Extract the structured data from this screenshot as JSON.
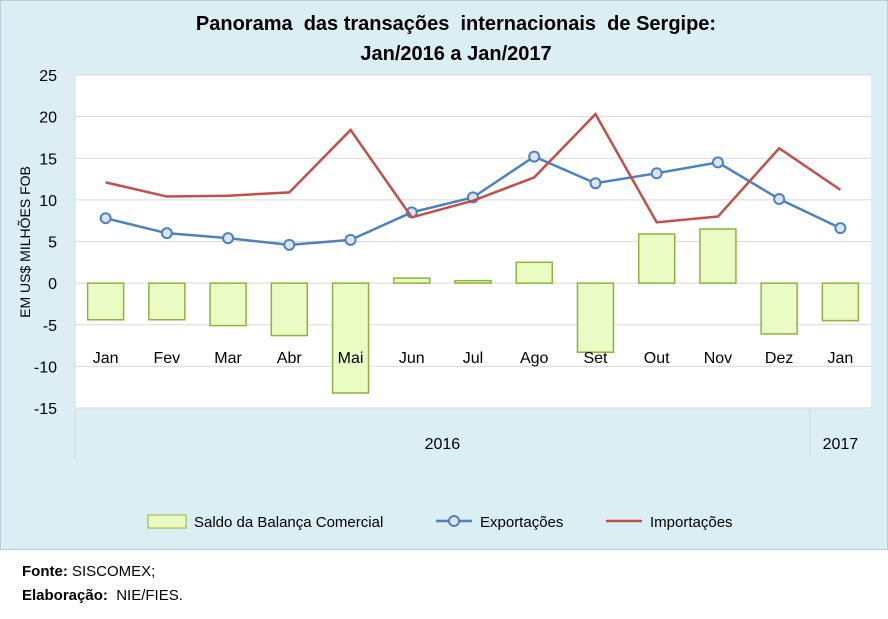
{
  "chart_data": {
    "type": "bar+line",
    "title_line1": "Panorama  das transações  internacionais  de Sergipe:",
    "title_line2": "Jan/2016 a Jan/2017",
    "ylabel": "EM US$ MILHÕES FOB",
    "ylim": [
      -15,
      25
    ],
    "yticks": [
      25,
      20,
      15,
      10,
      5,
      0,
      -5,
      -10,
      -15
    ],
    "grid": true,
    "categories": [
      "Jan",
      "Fev",
      "Mar",
      "Abr",
      "Mai",
      "Jun",
      "Jul",
      "Ago",
      "Set",
      "Out",
      "Nov",
      "Dez",
      "Jan"
    ],
    "year_groups": [
      {
        "label": "2016",
        "count": 12
      },
      {
        "label": "2017",
        "count": 1
      }
    ],
    "legend_position": "bottom",
    "series": [
      {
        "name": "Saldo da Balança Comercial",
        "type": "bar",
        "color": "#eafcc4",
        "stroke": "#8db33e",
        "values": [
          -4.4,
          -4.4,
          -5.1,
          -6.3,
          -13.2,
          0.6,
          0.3,
          2.5,
          -8.3,
          5.9,
          6.5,
          -6.1,
          -4.5
        ]
      },
      {
        "name": "Exportações",
        "type": "line",
        "color": "#4f81bd",
        "values": [
          7.8,
          6.0,
          5.4,
          4.6,
          5.2,
          8.5,
          10.3,
          15.2,
          12.0,
          13.2,
          14.5,
          10.1,
          6.6
        ]
      },
      {
        "name": "Importações",
        "type": "line",
        "color": "#c0504d",
        "values": [
          12.1,
          10.4,
          10.5,
          10.9,
          18.4,
          7.9,
          9.9,
          12.7,
          20.3,
          7.3,
          8.0,
          16.2,
          11.2
        ]
      }
    ]
  },
  "footer": {
    "source_label": "Fonte:",
    "source_value": " SISCOMEX;",
    "author_label": "Elaboração:",
    "author_value": "  NIE/FIES."
  }
}
